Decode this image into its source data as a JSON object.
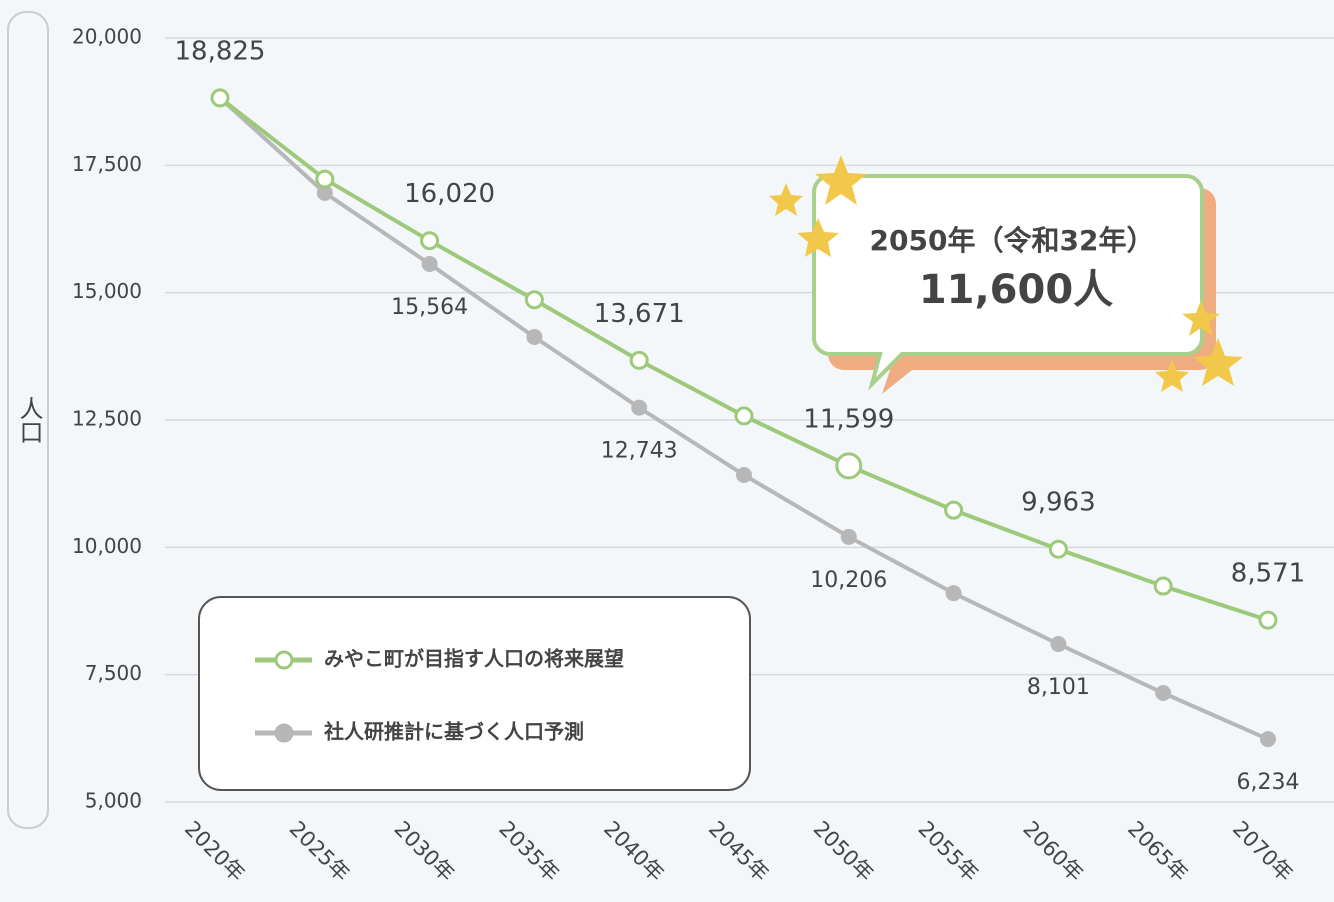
{
  "chart_data": {
    "type": "line",
    "y_label": "人口",
    "categories": [
      "2020年",
      "2025年",
      "2030年",
      "2035年",
      "2040年",
      "2045年",
      "2050年",
      "2055年",
      "2060年",
      "2065年",
      "2070年"
    ],
    "series": [
      {
        "name": "みやこ町が目指す人口の将来展望",
        "color": "#9dc97a",
        "values": [
          18825,
          17230,
          16020,
          14860,
          13671,
          12580,
          11599,
          10730,
          9963,
          9240,
          8571
        ],
        "value_labels": [
          "18,825",
          null,
          "16,020",
          null,
          "13,671",
          null,
          "11,599",
          null,
          "9,963",
          null,
          "8,571"
        ]
      },
      {
        "name": "社人研推計に基づく人口予測",
        "color": "#b7b7b7",
        "values": [
          18825,
          16960,
          15564,
          14130,
          12743,
          11420,
          10206,
          9100,
          8101,
          7140,
          6234
        ],
        "value_labels": [
          null,
          null,
          "15,564",
          null,
          "12,743",
          null,
          "10,206",
          null,
          "8,101",
          null,
          "6,234"
        ]
      }
    ],
    "ylim": [
      5000,
      20000
    ],
    "yticks": [
      {
        "value": 5000,
        "label": "5,000"
      },
      {
        "value": 7500,
        "label": "7,500"
      },
      {
        "value": 10000,
        "label": "10,000"
      },
      {
        "value": 12500,
        "label": "12,500"
      },
      {
        "value": 15000,
        "label": "15,000"
      },
      {
        "value": 17500,
        "label": "17,500"
      },
      {
        "value": 20000,
        "label": "20,000"
      }
    ],
    "grid": true,
    "annotations": [
      "2050年（令和32年）",
      "11,600人"
    ]
  }
}
